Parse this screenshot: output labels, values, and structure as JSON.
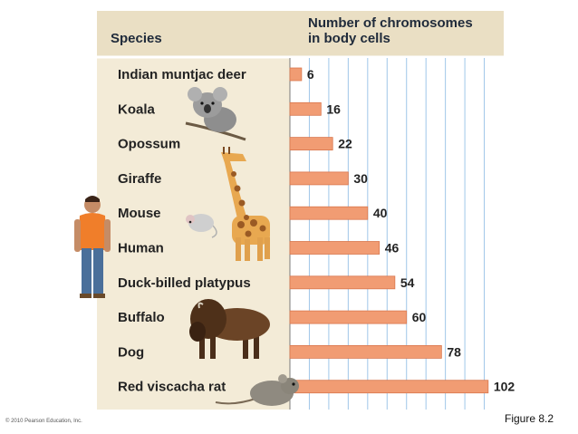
{
  "chart_data": {
    "type": "bar",
    "orientation": "horizontal",
    "category_header": "Species",
    "value_header_lines": [
      "Number of chromosomes",
      "in body cells"
    ],
    "categories": [
      "Indian muntjac deer",
      "Koala",
      "Opossum",
      "Giraffe",
      "Mouse",
      "Human",
      "Duck-billed platypus",
      "Buffalo",
      "Dog",
      "Red viscacha rat"
    ],
    "values": [
      6,
      16,
      22,
      30,
      40,
      46,
      54,
      60,
      78,
      102
    ],
    "xlim": [
      0,
      110
    ],
    "grid": true
  },
  "colors": {
    "panel": "#f3ebd7",
    "bar": "#f19c73",
    "bar_edge": "#d9774e",
    "grid": "#9fc6e8"
  },
  "illustrations": [
    "koala-icon",
    "giraffe-icon",
    "mouse-icon",
    "human-icon",
    "buffalo-icon",
    "rat-icon"
  ],
  "footer": {
    "copyright": "© 2010 Pearson Education, Inc.",
    "figure_label": "Figure 8.2"
  }
}
